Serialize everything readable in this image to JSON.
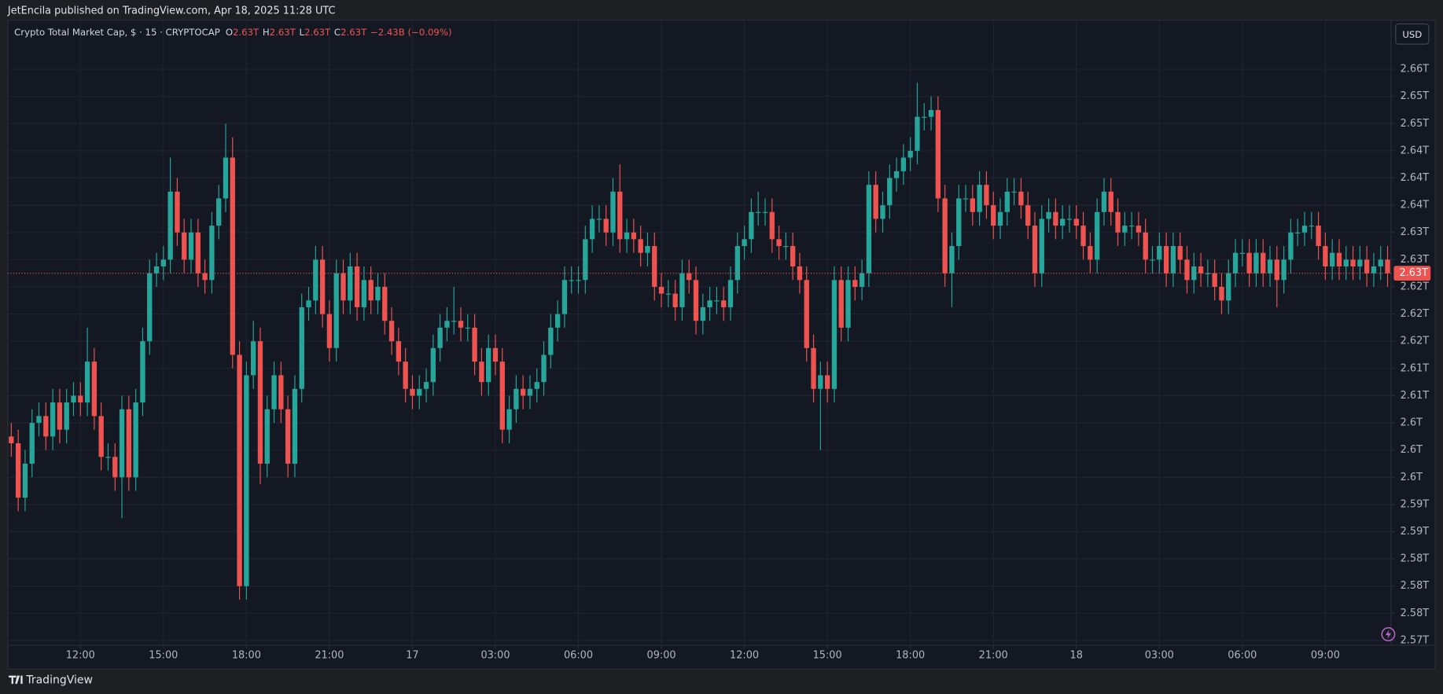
{
  "header": {
    "text": "JetEncila published on TradingView.com, Apr 18, 2025 11:28 UTC"
  },
  "chart_data": {
    "type": "candlestick",
    "title": "Crypto Total Market Cap, $ · 15 · CRYPTOCAP",
    "ohlc_legend": [
      {
        "key": "O",
        "value": "2.63T"
      },
      {
        "key": "H",
        "value": "2.63T"
      },
      {
        "key": "L",
        "value": "2.63T"
      },
      {
        "key": "C",
        "value": "2.63T"
      }
    ],
    "change": "−2.43B (−0.09%)",
    "currency": "USD",
    "up_color": "#26a69a",
    "down_color": "#ef5350",
    "open": [
      2.602,
      2.601,
      2.593,
      2.598,
      2.604,
      2.605,
      2.602,
      2.607,
      2.603,
      2.607,
      2.608,
      2.607,
      2.613,
      2.605,
      2.599,
      2.599,
      2.596,
      2.606,
      2.596,
      2.607,
      2.616,
      2.626,
      2.627,
      2.628,
      2.638,
      2.632,
      2.628,
      2.632,
      2.626,
      2.625,
      2.633,
      2.637,
      2.643,
      2.614,
      2.58,
      2.611,
      2.616,
      2.598,
      2.606,
      2.611,
      2.606,
      2.598,
      2.609,
      2.621,
      2.622,
      2.628,
      2.62,
      2.615,
      2.626,
      2.622,
      2.627,
      2.621,
      2.625,
      2.622,
      2.624,
      2.619,
      2.616,
      2.613,
      2.609,
      2.608,
      2.609,
      2.61,
      2.615,
      2.618,
      2.619,
      2.619,
      2.618,
      2.618,
      2.613,
      2.61,
      2.615,
      2.613,
      2.603,
      2.606,
      2.609,
      2.608,
      2.609,
      2.61,
      2.614,
      2.618,
      2.62,
      2.625,
      2.625,
      2.625,
      2.631,
      2.634,
      2.634,
      2.632,
      2.638,
      2.631,
      2.632,
      2.631,
      2.629,
      2.63,
      2.624,
      2.623,
      2.623,
      2.621,
      2.626,
      2.625,
      2.619,
      2.621,
      2.622,
      2.622,
      2.621,
      2.625,
      2.63,
      2.631,
      2.635,
      2.635,
      2.635,
      2.631,
      2.63,
      2.63,
      2.627,
      2.625,
      2.615,
      2.609,
      2.611,
      2.609,
      2.625,
      2.618,
      2.625,
      2.624,
      2.626,
      2.639,
      2.634,
      2.636,
      2.64,
      2.641,
      2.643,
      2.644,
      2.649,
      2.649,
      2.65,
      2.637,
      2.626,
      2.63,
      2.637,
      2.637,
      2.635,
      2.639,
      2.636,
      2.633,
      2.635,
      2.638,
      2.638,
      2.636,
      2.633,
      2.626,
      2.634,
      2.635,
      2.633,
      2.634,
      2.634,
      2.633,
      2.63,
      2.628,
      2.635,
      2.638,
      2.635,
      2.632,
      2.633,
      2.633,
      2.632,
      2.628,
      2.628,
      2.63,
      2.626,
      2.63,
      2.628,
      2.625,
      2.627,
      2.626,
      2.626,
      2.624,
      2.622,
      2.626,
      2.629,
      2.629,
      2.626,
      2.629,
      2.626,
      2.628,
      2.625,
      2.628,
      2.632,
      2.632,
      2.633,
      2.633,
      2.63,
      2.627,
      2.629,
      2.627,
      2.628,
      2.627,
      2.628,
      2.626,
      2.627,
      2.628
    ],
    "high": [
      2.604,
      2.603,
      2.6,
      2.606,
      2.607,
      2.607,
      2.609,
      2.609,
      2.609,
      2.61,
      2.61,
      2.618,
      2.615,
      2.607,
      2.601,
      2.601,
      2.608,
      2.608,
      2.609,
      2.618,
      2.628,
      2.629,
      2.63,
      2.643,
      2.64,
      2.634,
      2.634,
      2.634,
      2.628,
      2.635,
      2.639,
      2.648,
      2.646,
      2.616,
      2.613,
      2.619,
      2.618,
      2.608,
      2.613,
      2.613,
      2.608,
      2.611,
      2.623,
      2.624,
      2.63,
      2.63,
      2.622,
      2.628,
      2.628,
      2.629,
      2.629,
      2.627,
      2.627,
      2.626,
      2.626,
      2.621,
      2.618,
      2.615,
      2.611,
      2.611,
      2.612,
      2.617,
      2.62,
      2.621,
      2.624,
      2.621,
      2.62,
      2.62,
      2.615,
      2.617,
      2.617,
      2.615,
      2.608,
      2.611,
      2.611,
      2.611,
      2.612,
      2.616,
      2.62,
      2.622,
      2.627,
      2.627,
      2.627,
      2.633,
      2.636,
      2.636,
      2.636,
      2.64,
      2.642,
      2.634,
      2.634,
      2.633,
      2.632,
      2.632,
      2.626,
      2.625,
      2.625,
      2.628,
      2.628,
      2.627,
      2.623,
      2.624,
      2.624,
      2.624,
      2.627,
      2.632,
      2.633,
      2.637,
      2.638,
      2.637,
      2.637,
      2.633,
      2.632,
      2.632,
      2.629,
      2.627,
      2.617,
      2.613,
      2.613,
      2.627,
      2.627,
      2.627,
      2.627,
      2.628,
      2.641,
      2.641,
      2.638,
      2.642,
      2.643,
      2.645,
      2.646,
      2.654,
      2.651,
      2.652,
      2.652,
      2.639,
      2.632,
      2.639,
      2.639,
      2.639,
      2.641,
      2.641,
      2.638,
      2.637,
      2.64,
      2.64,
      2.64,
      2.638,
      2.635,
      2.636,
      2.637,
      2.637,
      2.636,
      2.636,
      2.636,
      2.635,
      2.632,
      2.637,
      2.64,
      2.64,
      2.637,
      2.635,
      2.635,
      2.635,
      2.634,
      2.63,
      2.632,
      2.632,
      2.632,
      2.632,
      2.63,
      2.629,
      2.629,
      2.628,
      2.628,
      2.626,
      2.628,
      2.631,
      2.631,
      2.631,
      2.631,
      2.631,
      2.63,
      2.63,
      2.63,
      2.634,
      2.634,
      2.635,
      2.635,
      2.635,
      2.632,
      2.631,
      2.631,
      2.63,
      2.63,
      2.63,
      2.63,
      2.629,
      2.63,
      2.63
    ],
    "low": [
      2.599,
      2.591,
      2.591,
      2.596,
      2.602,
      2.6,
      2.6,
      2.601,
      2.601,
      2.605,
      2.605,
      2.605,
      2.603,
      2.597,
      2.597,
      2.594,
      2.59,
      2.594,
      2.594,
      2.605,
      2.614,
      2.624,
      2.625,
      2.626,
      2.63,
      2.626,
      2.626,
      2.624,
      2.623,
      2.623,
      2.631,
      2.635,
      2.612,
      2.578,
      2.578,
      2.609,
      2.595,
      2.596,
      2.604,
      2.604,
      2.596,
      2.596,
      2.607,
      2.619,
      2.62,
      2.618,
      2.613,
      2.613,
      2.62,
      2.62,
      2.619,
      2.619,
      2.62,
      2.62,
      2.617,
      2.614,
      2.611,
      2.607,
      2.606,
      2.606,
      2.607,
      2.608,
      2.613,
      2.616,
      2.617,
      2.616,
      2.616,
      2.611,
      2.608,
      2.608,
      2.611,
      2.601,
      2.601,
      2.604,
      2.606,
      2.606,
      2.607,
      2.608,
      2.612,
      2.616,
      2.618,
      2.623,
      2.623,
      2.623,
      2.629,
      2.632,
      2.63,
      2.63,
      2.629,
      2.629,
      2.629,
      2.627,
      2.627,
      2.622,
      2.621,
      2.621,
      2.619,
      2.619,
      2.623,
      2.617,
      2.617,
      2.619,
      2.62,
      2.619,
      2.619,
      2.623,
      2.628,
      2.629,
      2.633,
      2.633,
      2.629,
      2.628,
      2.628,
      2.625,
      2.623,
      2.613,
      2.607,
      2.6,
      2.607,
      2.607,
      2.616,
      2.616,
      2.622,
      2.622,
      2.624,
      2.632,
      2.632,
      2.634,
      2.638,
      2.639,
      2.641,
      2.642,
      2.647,
      2.647,
      2.635,
      2.624,
      2.621,
      2.628,
      2.635,
      2.633,
      2.633,
      2.634,
      2.631,
      2.631,
      2.633,
      2.636,
      2.634,
      2.631,
      2.624,
      2.624,
      2.632,
      2.631,
      2.631,
      2.632,
      2.631,
      2.628,
      2.626,
      2.626,
      2.633,
      2.633,
      2.63,
      2.63,
      2.631,
      2.63,
      2.626,
      2.626,
      2.626,
      2.624,
      2.624,
      2.626,
      2.623,
      2.623,
      2.624,
      2.624,
      2.622,
      2.62,
      2.62,
      2.624,
      2.627,
      2.624,
      2.624,
      2.624,
      2.624,
      2.621,
      2.623,
      2.626,
      2.63,
      2.63,
      2.631,
      2.628,
      2.625,
      2.625,
      2.625,
      2.625,
      2.625,
      2.625,
      2.624,
      2.624,
      2.625,
      2.624
    ],
    "close": [
      2.601,
      2.593,
      2.598,
      2.604,
      2.605,
      2.602,
      2.607,
      2.603,
      2.607,
      2.608,
      2.607,
      2.613,
      2.605,
      2.599,
      2.599,
      2.596,
      2.606,
      2.596,
      2.607,
      2.616,
      2.626,
      2.627,
      2.628,
      2.638,
      2.632,
      2.628,
      2.632,
      2.626,
      2.625,
      2.633,
      2.637,
      2.643,
      2.614,
      2.58,
      2.611,
      2.616,
      2.598,
      2.606,
      2.611,
      2.606,
      2.598,
      2.609,
      2.621,
      2.622,
      2.628,
      2.62,
      2.615,
      2.626,
      2.622,
      2.627,
      2.621,
      2.625,
      2.622,
      2.624,
      2.619,
      2.616,
      2.613,
      2.609,
      2.608,
      2.609,
      2.61,
      2.615,
      2.618,
      2.619,
      2.619,
      2.618,
      2.618,
      2.613,
      2.61,
      2.615,
      2.613,
      2.603,
      2.606,
      2.609,
      2.608,
      2.609,
      2.61,
      2.614,
      2.618,
      2.62,
      2.625,
      2.625,
      2.625,
      2.631,
      2.634,
      2.634,
      2.632,
      2.638,
      2.631,
      2.632,
      2.631,
      2.629,
      2.63,
      2.624,
      2.623,
      2.623,
      2.621,
      2.626,
      2.625,
      2.619,
      2.621,
      2.622,
      2.622,
      2.621,
      2.625,
      2.63,
      2.631,
      2.635,
      2.635,
      2.635,
      2.631,
      2.63,
      2.63,
      2.627,
      2.625,
      2.615,
      2.609,
      2.611,
      2.609,
      2.625,
      2.618,
      2.625,
      2.624,
      2.626,
      2.639,
      2.634,
      2.636,
      2.64,
      2.641,
      2.643,
      2.644,
      2.649,
      2.649,
      2.65,
      2.637,
      2.626,
      2.63,
      2.637,
      2.637,
      2.635,
      2.639,
      2.636,
      2.633,
      2.635,
      2.638,
      2.638,
      2.636,
      2.633,
      2.626,
      2.634,
      2.635,
      2.633,
      2.634,
      2.634,
      2.633,
      2.63,
      2.628,
      2.635,
      2.638,
      2.635,
      2.632,
      2.633,
      2.633,
      2.632,
      2.628,
      2.628,
      2.63,
      2.626,
      2.63,
      2.628,
      2.625,
      2.627,
      2.626,
      2.626,
      2.624,
      2.622,
      2.626,
      2.629,
      2.629,
      2.626,
      2.629,
      2.626,
      2.628,
      2.625,
      2.628,
      2.632,
      2.632,
      2.633,
      2.633,
      2.63,
      2.627,
      2.629,
      2.627,
      2.628,
      2.627,
      2.628,
      2.626,
      2.627,
      2.628,
      2.626
    ],
    "xlim": [
      -0.5,
      199.5
    ],
    "xticks": [
      {
        "value": 10,
        "label": "12:00"
      },
      {
        "value": 22,
        "label": "15:00"
      },
      {
        "value": 34,
        "label": "18:00"
      },
      {
        "value": 46,
        "label": "21:00"
      },
      {
        "value": 58,
        "label": "17"
      },
      {
        "value": 70,
        "label": "03:00"
      },
      {
        "value": 82,
        "label": "06:00"
      },
      {
        "value": 94,
        "label": "09:00"
      },
      {
        "value": 106,
        "label": "12:00"
      },
      {
        "value": 118,
        "label": "15:00"
      },
      {
        "value": 130,
        "label": "18:00"
      },
      {
        "value": 142,
        "label": "21:00"
      },
      {
        "value": 154,
        "label": "18"
      },
      {
        "value": 166,
        "label": "03:00"
      },
      {
        "value": 178,
        "label": "06:00"
      },
      {
        "value": 190,
        "label": "09:00"
      }
    ],
    "ylim": [
      2.5713,
      2.6632
    ],
    "yticks": [
      {
        "value": 2.572,
        "label": "2.57T"
      },
      {
        "value": 2.576,
        "label": "2.58T"
      },
      {
        "value": 2.58,
        "label": "2.58T"
      },
      {
        "value": 2.584,
        "label": "2.58T"
      },
      {
        "value": 2.588,
        "label": "2.59T"
      },
      {
        "value": 2.592,
        "label": "2.59T"
      },
      {
        "value": 2.596,
        "label": "2.6T"
      },
      {
        "value": 2.6,
        "label": "2.6T"
      },
      {
        "value": 2.604,
        "label": "2.6T"
      },
      {
        "value": 2.608,
        "label": "2.61T"
      },
      {
        "value": 2.612,
        "label": "2.61T"
      },
      {
        "value": 2.616,
        "label": "2.62T"
      },
      {
        "value": 2.62,
        "label": "2.62T"
      },
      {
        "value": 2.624,
        "label": "2.62T"
      },
      {
        "value": 2.628,
        "label": "2.63T"
      },
      {
        "value": 2.632,
        "label": "2.63T"
      },
      {
        "value": 2.636,
        "label": "2.64T"
      },
      {
        "value": 2.64,
        "label": "2.64T"
      },
      {
        "value": 2.644,
        "label": "2.64T"
      },
      {
        "value": 2.648,
        "label": "2.65T"
      },
      {
        "value": 2.652,
        "label": "2.65T"
      },
      {
        "value": 2.656,
        "label": "2.66T"
      }
    ],
    "grid": true,
    "last_price": {
      "value": 2.626,
      "label": "2.63T"
    }
  },
  "footer": {
    "brand": "TradingView"
  }
}
